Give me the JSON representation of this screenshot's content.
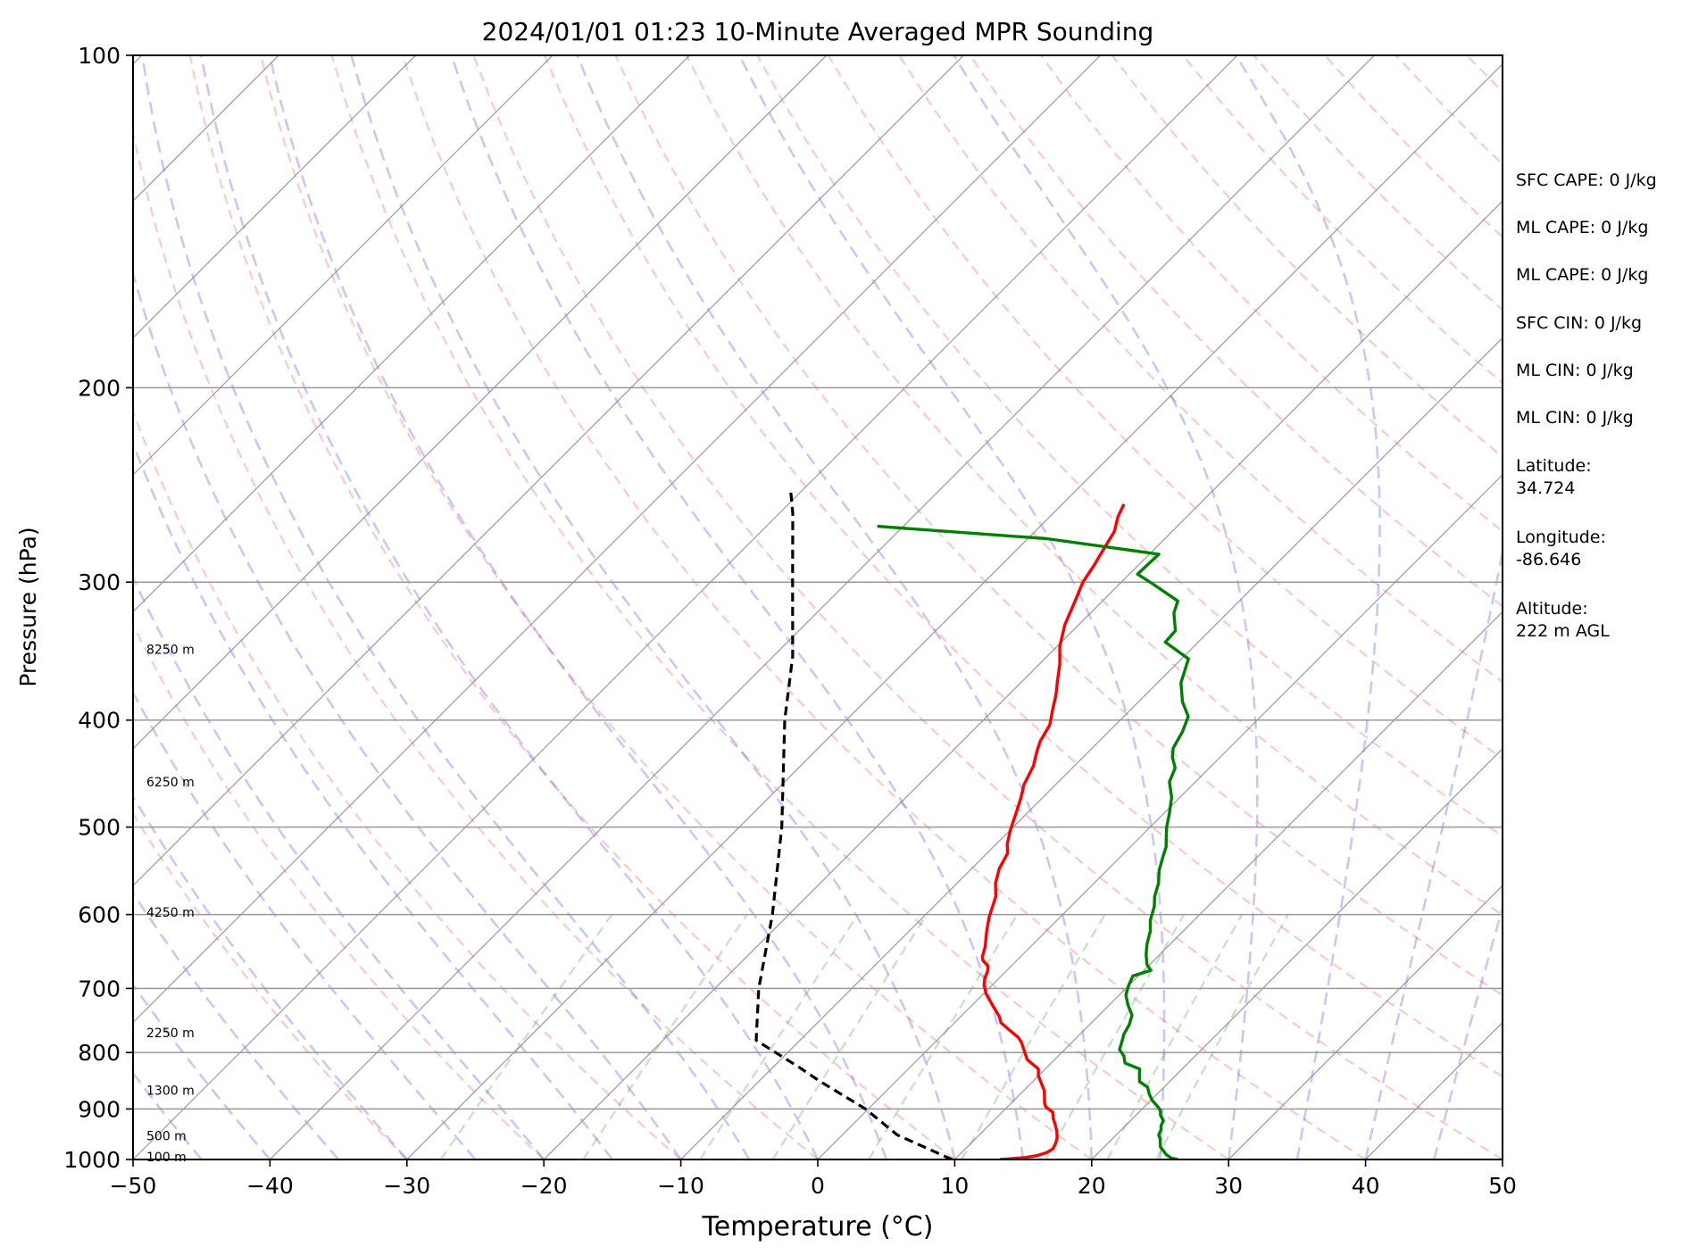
{
  "chart_data": {
    "type": "line",
    "title": "2024/01/01 01:23 10-Minute Averaged MPR Sounding",
    "xlabel": "Temperature (°C)",
    "ylabel": "Pressure (hPa)",
    "xlim": [
      -50,
      50
    ],
    "ylim": [
      1000,
      100
    ],
    "y_scale": "log",
    "skew": "skew-T (isotherms slanted 45°)",
    "grid": true,
    "x_ticks": [
      "−50",
      "−40",
      "−30",
      "−20",
      "−10",
      "0",
      "10",
      "20",
      "30",
      "40",
      "50"
    ],
    "x_tick_values": [
      -50,
      -40,
      -30,
      -20,
      -10,
      0,
      10,
      20,
      30,
      40,
      50
    ],
    "y_ticks": [
      "100",
      "200",
      "300",
      "400",
      "500",
      "600",
      "700",
      "800",
      "900",
      "1000"
    ],
    "y_tick_values": [
      100,
      200,
      300,
      400,
      500,
      600,
      700,
      800,
      900,
      1000
    ],
    "height_labels": [
      {
        "text": "8250 m",
        "pressure": 345
      },
      {
        "text": "6250 m",
        "pressure": 455
      },
      {
        "text": "4250 m",
        "pressure": 597
      },
      {
        "text": "2250 m",
        "pressure": 768
      },
      {
        "text": "1300 m",
        "pressure": 866
      },
      {
        "text": "500 m",
        "pressure": 952
      },
      {
        "text": "100 m",
        "pressure": 994
      }
    ],
    "series": [
      {
        "color": "#ff0000",
        "points": [
          [
            -25.5,
            255
          ],
          [
            -25,
            262
          ],
          [
            -24.2,
            270
          ],
          [
            -23.8,
            278
          ],
          [
            -23.2,
            290
          ],
          [
            -22.8,
            300
          ],
          [
            -22,
            312
          ],
          [
            -21,
            328
          ],
          [
            -19.8,
            343
          ],
          [
            -18.5,
            356
          ],
          [
            -17.5,
            368
          ],
          [
            -16.5,
            380
          ],
          [
            -15.8,
            390
          ],
          [
            -14.8,
            404
          ],
          [
            -14.3,
            418
          ],
          [
            -13.8,
            427
          ],
          [
            -13,
            440
          ],
          [
            -12.3,
            458
          ],
          [
            -11.6,
            470
          ],
          [
            -10.8,
            486
          ],
          [
            -10,
            503
          ],
          [
            -9.2,
            518
          ],
          [
            -8.5,
            528
          ],
          [
            -8,
            545
          ],
          [
            -7.2,
            562
          ],
          [
            -6.2,
            578
          ],
          [
            -5.2,
            603
          ],
          [
            -4.3,
            622
          ],
          [
            -3.3,
            642
          ],
          [
            -2.8,
            655
          ],
          [
            -2.5,
            660
          ],
          [
            -1.7,
            668
          ],
          [
            -1.4,
            674
          ],
          [
            -1,
            686
          ],
          [
            -0.6,
            695
          ],
          [
            0.2,
            708
          ],
          [
            1.5,
            725
          ],
          [
            2.8,
            742
          ],
          [
            3.4,
            752
          ],
          [
            4.5,
            763
          ],
          [
            5.7,
            775
          ],
          [
            6.3,
            783
          ],
          [
            7.3,
            800
          ],
          [
            8,
            812
          ],
          [
            9.5,
            828
          ],
          [
            10,
            840
          ],
          [
            10.7,
            852
          ],
          [
            11.5,
            866
          ],
          [
            12,
            878
          ],
          [
            12.4,
            888
          ],
          [
            12.8,
            896
          ],
          [
            13.7,
            906
          ],
          [
            14.2,
            918
          ],
          [
            14.8,
            930
          ],
          [
            15.4,
            943
          ],
          [
            15.9,
            956
          ],
          [
            16.2,
            967
          ],
          [
            16.4,
            978
          ],
          [
            16.2,
            986
          ],
          [
            15.7,
            992
          ],
          [
            15.0,
            996
          ],
          [
            13.8,
            999
          ],
          [
            13.3,
            1000
          ]
        ]
      },
      {
        "color": "#008000",
        "points": [
          [
            -41.9,
            267
          ],
          [
            -28.6,
            274
          ],
          [
            -19.3,
            283
          ],
          [
            -19.4,
            295
          ],
          [
            -17.6,
            301
          ],
          [
            -14.5,
            312
          ],
          [
            -13.9,
            320
          ],
          [
            -12.5,
            332
          ],
          [
            -12.4,
            340
          ],
          [
            -9.5,
            352
          ],
          [
            -8.3,
            370
          ],
          [
            -6.8,
            385
          ],
          [
            -5.3,
            397
          ],
          [
            -4.6,
            410
          ],
          [
            -4.1,
            424
          ],
          [
            -3.5,
            432
          ],
          [
            -2.5,
            442
          ],
          [
            -1.9,
            455
          ],
          [
            -0.6,
            470
          ],
          [
            0.4,
            486
          ],
          [
            1.2,
            500
          ],
          [
            2.0,
            512
          ],
          [
            2.6,
            521
          ],
          [
            3.1,
            532
          ],
          [
            3.8,
            547
          ],
          [
            4.7,
            562
          ],
          [
            5.4,
            578
          ],
          [
            6.1,
            590
          ],
          [
            6.8,
            607
          ],
          [
            7.6,
            621
          ],
          [
            8.3,
            638
          ],
          [
            9.0,
            652
          ],
          [
            9.8,
            666
          ],
          [
            10.5,
            674
          ],
          [
            9.6,
            682
          ],
          [
            10.0,
            696
          ],
          [
            10.5,
            710
          ],
          [
            11.4,
            725
          ],
          [
            12.4,
            740
          ],
          [
            12.9,
            755
          ],
          [
            13.2,
            770
          ],
          [
            13.6,
            782
          ],
          [
            14.0,
            795
          ],
          [
            14.8,
            806
          ],
          [
            15.4,
            818
          ],
          [
            16.9,
            828
          ],
          [
            17.3,
            838
          ],
          [
            17.8,
            850
          ],
          [
            18.8,
            860
          ],
          [
            19.4,
            872
          ],
          [
            20.1,
            884
          ],
          [
            20.7,
            892
          ],
          [
            21.4,
            902
          ],
          [
            21.8,
            912
          ],
          [
            22.4,
            922
          ],
          [
            22.6,
            932
          ],
          [
            22.9,
            940
          ],
          [
            23.1,
            950
          ],
          [
            23.5,
            958
          ],
          [
            23.8,
            966
          ],
          [
            24.1,
            974
          ],
          [
            24.6,
            982
          ],
          [
            25.1,
            990
          ],
          [
            25.7,
            997
          ],
          [
            26.3,
            1000
          ]
        ]
      },
      {
        "color": "#000000",
        "dashed": true,
        "points": [
          [
            9.8,
            1000
          ],
          [
            4.0,
            950
          ],
          [
            -0.2,
            900
          ],
          [
            -5.5,
            850
          ],
          [
            -8.1,
            825
          ],
          [
            -13.2,
            780
          ],
          [
            -16.8,
            700
          ],
          [
            -21.2,
            600
          ],
          [
            -26.9,
            500
          ],
          [
            -34.5,
            400
          ],
          [
            -38.6,
            350
          ],
          [
            -44.0,
            300
          ],
          [
            -49.0,
            260
          ],
          [
            -50.5,
            250
          ],
          [
            -51,
            247
          ]
        ]
      }
    ]
  },
  "side_panel": {
    "sfc_cape": "SFC CAPE: 0 J/kg",
    "ml_cape_1": "ML CAPE: 0 J/kg",
    "ml_cape_2": "ML CAPE: 0 J/kg",
    "sfc_cin": "SFC CIN: 0 J/kg",
    "ml_cin_1": "ML CIN: 0 J/kg",
    "ml_cin_2": "ML CIN: 0 J/kg",
    "latitude": "Latitude:\n34.724",
    "longitude": "Longitude:\n-86.646",
    "altitude": "Altitude:\n222 m AGL"
  }
}
